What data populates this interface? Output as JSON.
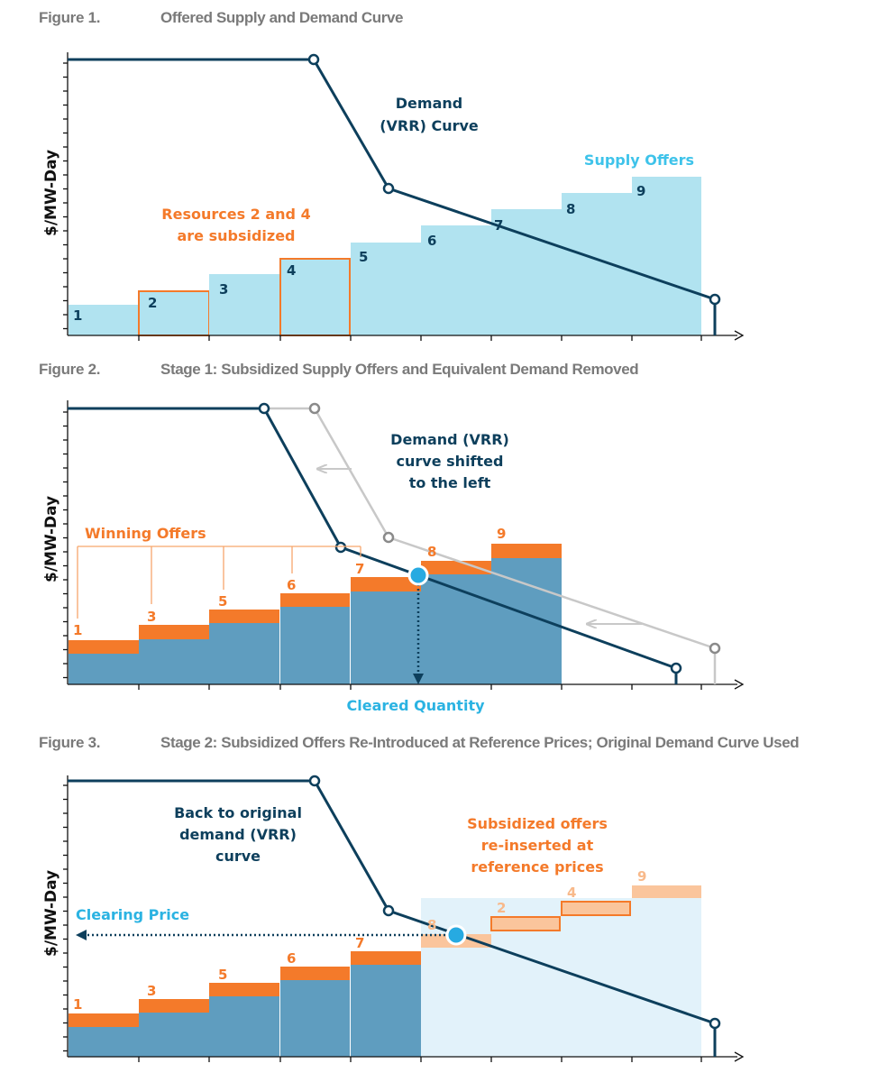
{
  "figures": [
    {
      "number": "Figure 1.",
      "title": "Offered Supply and Demand Curve",
      "y_axis_label": "$/MW-Day",
      "labels": {
        "demand": [
          "Demand",
          "(VRR) Curve"
        ],
        "supply": "Supply Offers",
        "subsidized": [
          "Resources 2 and 4",
          "are subsidized"
        ]
      },
      "offers": [
        "1",
        "2",
        "3",
        "4",
        "5",
        "6",
        "7",
        "8",
        "9"
      ]
    },
    {
      "number": "Figure 2.",
      "title": "Stage 1: Subsidized Supply Offers and Equivalent Demand Removed",
      "y_axis_label": "$/MW-Day",
      "labels": {
        "demand": [
          "Demand (VRR)",
          "curve shifted",
          "to the left"
        ],
        "winning": "Winning Offers",
        "cleared": "Cleared Quantity"
      },
      "offers": [
        "1",
        "3",
        "5",
        "6",
        "7",
        "8",
        "9"
      ]
    },
    {
      "number": "Figure 3.",
      "title": "Stage 2: Subsidized Offers Re-Introduced at Reference Prices; Original Demand Curve Used",
      "y_axis_label": "$/MW-Day",
      "labels": {
        "demand": [
          "Back to original",
          "demand (VRR)",
          "curve"
        ],
        "reinserted": [
          "Subsidized offers",
          "re-inserted at",
          "reference prices"
        ],
        "clearing": "Clearing Price"
      },
      "offers": [
        "1",
        "3",
        "5",
        "6",
        "7",
        "8",
        "2",
        "4",
        "9"
      ]
    }
  ],
  "colors": {
    "navy": "#0d3f5c",
    "light_blue": "#b1e3f0",
    "steel_blue": "#5f9dbf",
    "orange": "#f47a2a",
    "light_orange": "#fac59c",
    "pale_blue": "#e2f2fa",
    "gray": "#c8c8c8",
    "cyan": "#27aae1",
    "cyan_text": "#2bb3e2"
  }
}
